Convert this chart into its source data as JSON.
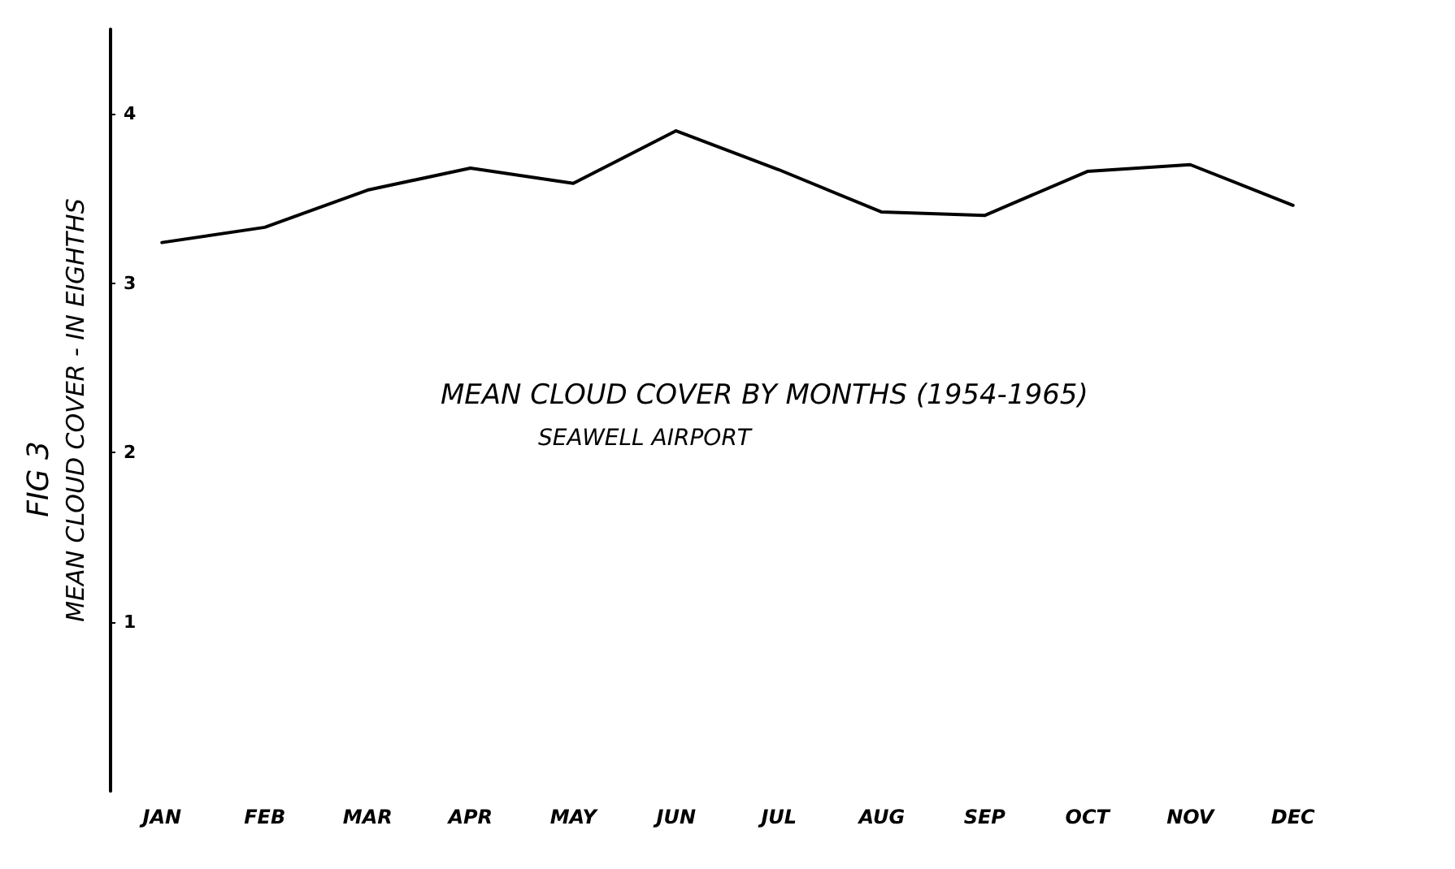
{
  "chart_data": {
    "type": "line",
    "title": "MEAN CLOUD COVER BY MONTHS (1954-1965)",
    "subtitle": "SEAWELL AIRPORT",
    "ylabel": "MEAN CLOUD COVER - IN EIGHTHS",
    "annotations": [
      "FIG 3"
    ],
    "categories": [
      "JAN",
      "FEB",
      "MAR",
      "APR",
      "MAY",
      "JUN",
      "JUL",
      "AUG",
      "SEP",
      "OCT",
      "NOV",
      "DEC"
    ],
    "series": [
      {
        "color": "#000000",
        "values": [
          3.24,
          3.33,
          3.55,
          3.68,
          3.59,
          3.9,
          3.67,
          3.42,
          3.4,
          3.66,
          3.7,
          3.46
        ]
      }
    ],
    "ylim": [
      0,
      4.5
    ],
    "yticks": [
      1,
      2,
      3,
      4
    ],
    "grid": false,
    "marker": "none",
    "line_style": "solid"
  }
}
